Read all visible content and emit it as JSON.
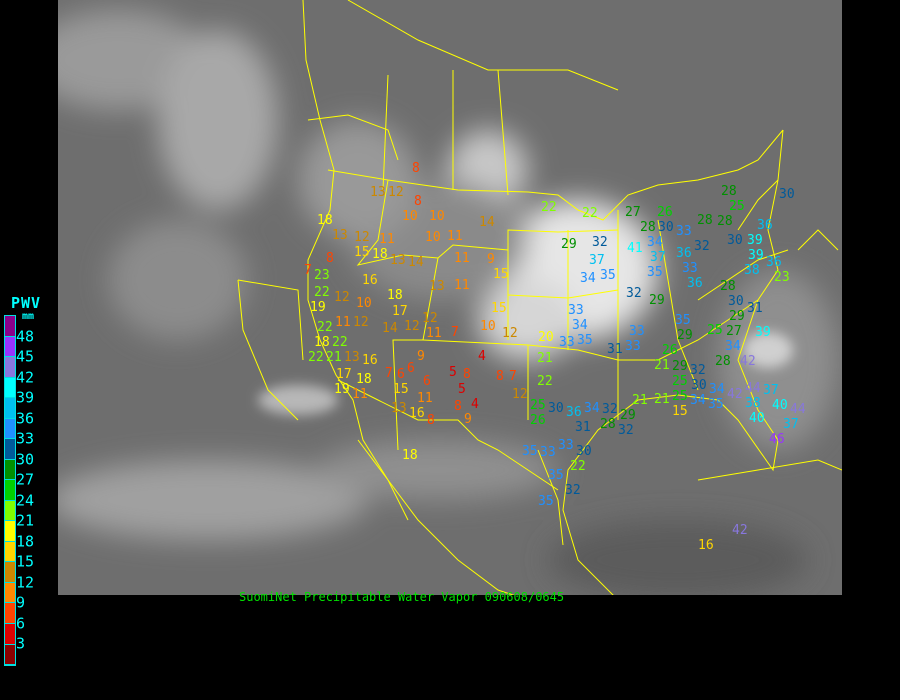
{
  "caption": "SuomiNet Precipitable Water Vapor 090608/0645",
  "legend": {
    "title": "PWV",
    "unit": "mm",
    "labels": [
      "48",
      "45",
      "42",
      "39",
      "36",
      "33",
      "30",
      "27",
      "24",
      "21",
      "18",
      "15",
      "12",
      "9",
      "6",
      "3"
    ],
    "colors_top_to_bottom": [
      "#8b008b",
      "#9933ff",
      "#8877dd",
      "#00ffff",
      "#00c0f0",
      "#2090ff",
      "#005a9a",
      "#009000",
      "#00d000",
      "#80ff00",
      "#ffff00",
      "#ffd700",
      "#cc8800",
      "#ff8800",
      "#ff4400",
      "#dd0000",
      "#8b0000"
    ]
  },
  "colors": {
    "border": "#ffff00",
    "background": "#000000",
    "caption": "#00e000"
  },
  "stations": [
    "8",
    "13",
    "12",
    "8",
    "10",
    "10",
    "18",
    "13",
    "12",
    "11",
    "10",
    "11",
    "14",
    "8",
    "23",
    "15",
    "18",
    "16",
    "13",
    "14",
    "11",
    "9",
    "15",
    "7",
    "22",
    "12",
    "10",
    "18",
    "13",
    "11",
    "15",
    "19",
    "11",
    "12",
    "17",
    "12",
    "14",
    "12",
    "11",
    "7",
    "10",
    "12",
    "22",
    "18",
    "22",
    "22",
    "21",
    "16",
    "13",
    "9",
    "6",
    "7",
    "6",
    "4",
    "5",
    "8",
    "7",
    "8",
    "17",
    "18",
    "19",
    "11",
    "15",
    "6",
    "5",
    "12",
    "8",
    "4",
    "11",
    "16",
    "13",
    "8",
    "9",
    "18",
    "22",
    "22",
    "27",
    "26",
    "29",
    "32",
    "41",
    "28",
    "30",
    "33",
    "34",
    "37",
    "36",
    "32",
    "37",
    "34",
    "35",
    "35",
    "33",
    "36",
    "32",
    "29",
    "28",
    "25",
    "30",
    "28",
    "28",
    "30",
    "39",
    "36",
    "39",
    "38",
    "36",
    "23",
    "28",
    "30",
    "31",
    "29",
    "33",
    "34",
    "20",
    "33",
    "35",
    "33",
    "33",
    "35",
    "29",
    "25",
    "27",
    "39",
    "31",
    "26",
    "34",
    "28",
    "42",
    "21",
    "22",
    "21",
    "29",
    "25",
    "32",
    "30",
    "25",
    "21",
    "15",
    "34",
    "35",
    "34",
    "42",
    "44",
    "37",
    "38",
    "40",
    "44",
    "37",
    "40",
    "46",
    "25",
    "30",
    "26",
    "36",
    "34",
    "32",
    "31",
    "29",
    "28",
    "32",
    "35",
    "33",
    "33",
    "30",
    "22",
    "35",
    "32",
    "35",
    "21",
    "16",
    "42"
  ]
}
